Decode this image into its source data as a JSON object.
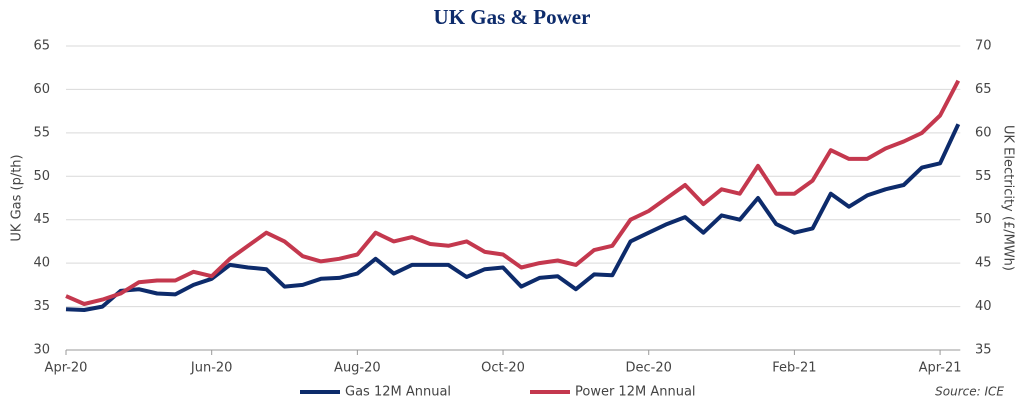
{
  "chart_data": {
    "type": "line",
    "title": "UK Gas & Power",
    "y_label": "UK Gas (p/th)",
    "y2_label": "UK Electricity (£/MWh)",
    "source": "Source: ICE",
    "categories": [
      "Apr-20",
      null,
      null,
      null,
      null,
      null,
      null,
      null,
      "Jun-20",
      null,
      null,
      null,
      null,
      null,
      null,
      null,
      "Aug-20",
      null,
      null,
      null,
      null,
      null,
      null,
      null,
      "Oct-20",
      null,
      null,
      null,
      null,
      null,
      null,
      null,
      "Dec-20",
      null,
      null,
      null,
      null,
      null,
      null,
      null,
      "Feb-21",
      null,
      null,
      null,
      null,
      null,
      null,
      null,
      "Apr-21",
      null
    ],
    "series": [
      {
        "name": "Gas 12M Annual",
        "color": "#0d2b6b",
        "axis": "y",
        "values": [
          34.7,
          34.6,
          35.0,
          36.8,
          37.0,
          36.5,
          36.4,
          37.5,
          38.2,
          39.8,
          39.5,
          39.3,
          37.3,
          37.5,
          38.2,
          38.3,
          38.8,
          40.5,
          38.8,
          39.8,
          39.8,
          39.8,
          38.4,
          39.3,
          39.5,
          37.3,
          38.3,
          38.5,
          37.0,
          38.7,
          38.6,
          42.5,
          43.5,
          44.5,
          45.3,
          43.5,
          45.5,
          45.0,
          47.5,
          44.5,
          43.5,
          44.0,
          48.0,
          46.5,
          47.8,
          48.5,
          49.0,
          51.0,
          51.5,
          56.0
        ]
      },
      {
        "name": "Power 12M Annual",
        "color": "#c4384e",
        "axis": "y2",
        "values": [
          41.2,
          40.3,
          40.8,
          41.5,
          42.8,
          43.0,
          43.0,
          44.0,
          43.5,
          45.5,
          47.0,
          48.5,
          47.5,
          45.8,
          45.2,
          45.5,
          46.0,
          48.5,
          47.5,
          48.0,
          47.2,
          47.0,
          47.5,
          46.3,
          46.0,
          44.5,
          45.0,
          45.3,
          44.8,
          46.5,
          47.0,
          50.0,
          51.0,
          52.5,
          54.0,
          51.8,
          53.5,
          53.0,
          56.2,
          53.0,
          53.0,
          54.5,
          58.0,
          57.0,
          57.0,
          58.2,
          59.0,
          60.0,
          62.0,
          66.0
        ]
      }
    ],
    "ylim": [
      30,
      65
    ],
    "yticks": [
      30,
      35,
      40,
      45,
      50,
      55,
      60,
      65
    ],
    "y2lim": [
      35,
      70
    ],
    "y2ticks": [
      35,
      40,
      45,
      50,
      55,
      60,
      65,
      70
    ],
    "grid": true
  }
}
